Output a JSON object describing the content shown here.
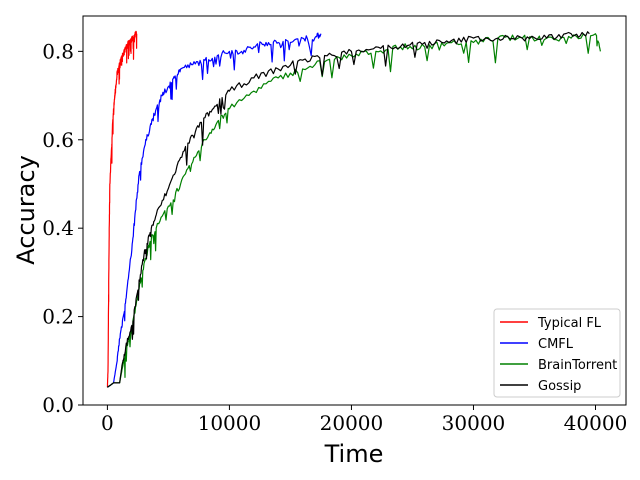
{
  "chart_data": {
    "type": "line",
    "title": "",
    "xlabel": "Time",
    "ylabel": "Accuracy",
    "xlim": [
      -2000,
      42500
    ],
    "ylim": [
      0.0,
      0.88
    ],
    "xticks": [
      0,
      10000,
      20000,
      30000,
      40000
    ],
    "xtick_labels": [
      "0",
      "10000",
      "20000",
      "30000",
      "40000"
    ],
    "yticks": [
      0.0,
      0.2,
      0.4,
      0.6,
      0.8
    ],
    "ytick_labels": [
      "0.0",
      "0.2",
      "0.4",
      "0.6",
      "0.8"
    ],
    "legend_position": "bottom-right",
    "series": [
      {
        "name": "Typical FL",
        "color": "#ff0000",
        "x": [
          0,
          50,
          100,
          150,
          200,
          300,
          400,
          500,
          600,
          700,
          800,
          900,
          1000,
          1100,
          1200,
          1300,
          1400,
          1500,
          1600,
          1700,
          1800,
          1900,
          2000,
          2100,
          2200,
          2300,
          2400
        ],
        "y": [
          0.04,
          0.08,
          0.25,
          0.4,
          0.5,
          0.56,
          0.62,
          0.67,
          0.7,
          0.72,
          0.75,
          0.76,
          0.77,
          0.78,
          0.79,
          0.79,
          0.8,
          0.81,
          0.81,
          0.82,
          0.82,
          0.82,
          0.83,
          0.83,
          0.83,
          0.84,
          0.84
        ]
      },
      {
        "name": "CMFL",
        "color": "#0000ff",
        "x": [
          0,
          500,
          800,
          1000,
          1300,
          1600,
          2000,
          2300,
          2600,
          3000,
          3500,
          4000,
          4500,
          5000,
          5500,
          6000,
          7000,
          8000,
          9000,
          10000,
          11000,
          12000,
          13000,
          14000,
          15000,
          16000,
          17000,
          17500
        ],
        "y": [
          0.04,
          0.05,
          0.1,
          0.15,
          0.2,
          0.26,
          0.35,
          0.44,
          0.52,
          0.58,
          0.63,
          0.67,
          0.7,
          0.72,
          0.74,
          0.76,
          0.77,
          0.78,
          0.79,
          0.8,
          0.8,
          0.81,
          0.82,
          0.82,
          0.82,
          0.83,
          0.83,
          0.84
        ]
      },
      {
        "name": "BrainTorrent",
        "color": "#008000",
        "x": [
          0,
          500,
          1000,
          1200,
          1500,
          2000,
          2500,
          3000,
          3500,
          4000,
          5000,
          6000,
          7000,
          8000,
          9000,
          10000,
          12000,
          14000,
          16000,
          18000,
          20000,
          22000,
          24000,
          26000,
          28000,
          30000,
          32000,
          34000,
          36000,
          38000,
          40000,
          40400
        ],
        "y": [
          0.04,
          0.05,
          0.05,
          0.08,
          0.12,
          0.17,
          0.25,
          0.32,
          0.37,
          0.4,
          0.45,
          0.5,
          0.55,
          0.6,
          0.64,
          0.67,
          0.71,
          0.74,
          0.76,
          0.78,
          0.79,
          0.8,
          0.81,
          0.81,
          0.82,
          0.82,
          0.83,
          0.83,
          0.83,
          0.83,
          0.84,
          0.8
        ]
      },
      {
        "name": "Gossip",
        "color": "#000000",
        "x": [
          0,
          500,
          1000,
          1200,
          1500,
          2000,
          2500,
          3000,
          3500,
          4000,
          5000,
          6000,
          7000,
          8000,
          9000,
          10000,
          12000,
          14000,
          16000,
          18000,
          20000,
          22000,
          24000,
          26000,
          28000,
          30000,
          32000,
          34000,
          36000,
          38000,
          39500
        ],
        "y": [
          0.04,
          0.05,
          0.05,
          0.09,
          0.13,
          0.18,
          0.26,
          0.34,
          0.39,
          0.43,
          0.49,
          0.56,
          0.61,
          0.65,
          0.68,
          0.71,
          0.74,
          0.76,
          0.78,
          0.79,
          0.8,
          0.81,
          0.81,
          0.82,
          0.82,
          0.83,
          0.83,
          0.83,
          0.83,
          0.84,
          0.84
        ]
      }
    ]
  }
}
